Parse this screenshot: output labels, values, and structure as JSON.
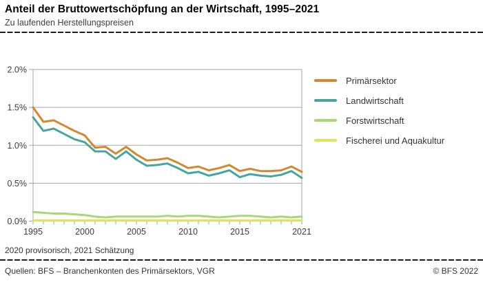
{
  "header": {
    "title": "Anteil der Bruttowertschöpfung an der Wirtschaft, 1995–2021",
    "subtitle": "Zu laufenden Herstellungspreisen"
  },
  "footnote": "2020 provisorisch, 2021 Schätzung",
  "footer": {
    "source": "Quellen: BFS – Branchenkonten des Primärsektors, VGR",
    "copyright": "© BFS 2022"
  },
  "colors": {
    "grid": "#a6a6a6",
    "axis_text": "#3c3c3c",
    "accent_orange": "#d6872e",
    "accent_teal": "#48a59c",
    "accent_green": "#a6d878",
    "accent_yellow": "#dfe45d"
  },
  "chart_data": {
    "type": "line",
    "title": "Anteil der Bruttowertschöpfung an der Wirtschaft, 1995–2021",
    "subtitle": "Zu laufenden Herstellungspreisen",
    "xlabel": "",
    "ylabel": "",
    "ylim": [
      0.0,
      2.0
    ],
    "grid": "horizontal",
    "legend_position": "right",
    "x": [
      1995,
      1996,
      1997,
      1998,
      1999,
      2000,
      2001,
      2002,
      2003,
      2004,
      2005,
      2006,
      2007,
      2008,
      2009,
      2010,
      2011,
      2012,
      2013,
      2014,
      2015,
      2016,
      2017,
      2018,
      2019,
      2020,
      2021
    ],
    "y_ticks": [
      {
        "value": 0.0,
        "label": "0.0%"
      },
      {
        "value": 0.5,
        "label": "0.5%"
      },
      {
        "value": 1.0,
        "label": "1.0%"
      },
      {
        "value": 1.5,
        "label": "1.5%"
      },
      {
        "value": 2.0,
        "label": "2.0%"
      }
    ],
    "x_tick_labels": [
      {
        "value": 1995,
        "label": "1995"
      },
      {
        "value": 2000,
        "label": "2000"
      },
      {
        "value": 2005,
        "label": "2005"
      },
      {
        "value": 2010,
        "label": "2010"
      },
      {
        "value": 2015,
        "label": "2015"
      },
      {
        "value": 2021,
        "label": "2021"
      }
    ],
    "series": [
      {
        "name": "Primärsektor",
        "color": "#d6872e",
        "values": [
          1.5,
          1.31,
          1.33,
          1.26,
          1.19,
          1.13,
          0.97,
          0.98,
          0.89,
          0.98,
          0.88,
          0.8,
          0.81,
          0.83,
          0.77,
          0.7,
          0.72,
          0.67,
          0.7,
          0.74,
          0.66,
          0.69,
          0.66,
          0.66,
          0.67,
          0.72,
          0.65
        ]
      },
      {
        "name": "Landwirtschaft",
        "color": "#48a59c",
        "values": [
          1.37,
          1.19,
          1.22,
          1.15,
          1.08,
          1.04,
          0.92,
          0.92,
          0.82,
          0.92,
          0.81,
          0.73,
          0.74,
          0.76,
          0.7,
          0.63,
          0.65,
          0.6,
          0.63,
          0.67,
          0.58,
          0.62,
          0.6,
          0.59,
          0.61,
          0.66,
          0.57
        ]
      },
      {
        "name": "Forstwirtschaft",
        "color": "#a6d878",
        "values": [
          0.12,
          0.11,
          0.1,
          0.1,
          0.09,
          0.08,
          0.06,
          0.05,
          0.06,
          0.06,
          0.06,
          0.06,
          0.06,
          0.07,
          0.06,
          0.07,
          0.07,
          0.06,
          0.05,
          0.06,
          0.07,
          0.07,
          0.06,
          0.05,
          0.06,
          0.05,
          0.06
        ]
      },
      {
        "name": "Fischerei und Aquakultur",
        "color": "#dfe45d",
        "values": [
          0.01,
          0.01,
          0.01,
          0.01,
          0.01,
          0.01,
          0.01,
          0.01,
          0.01,
          0.01,
          0.01,
          0.01,
          0.01,
          0.01,
          0.01,
          0.01,
          0.01,
          0.01,
          0.01,
          0.01,
          0.01,
          0.01,
          0.01,
          0.01,
          0.01,
          0.01,
          0.01
        ]
      }
    ]
  }
}
